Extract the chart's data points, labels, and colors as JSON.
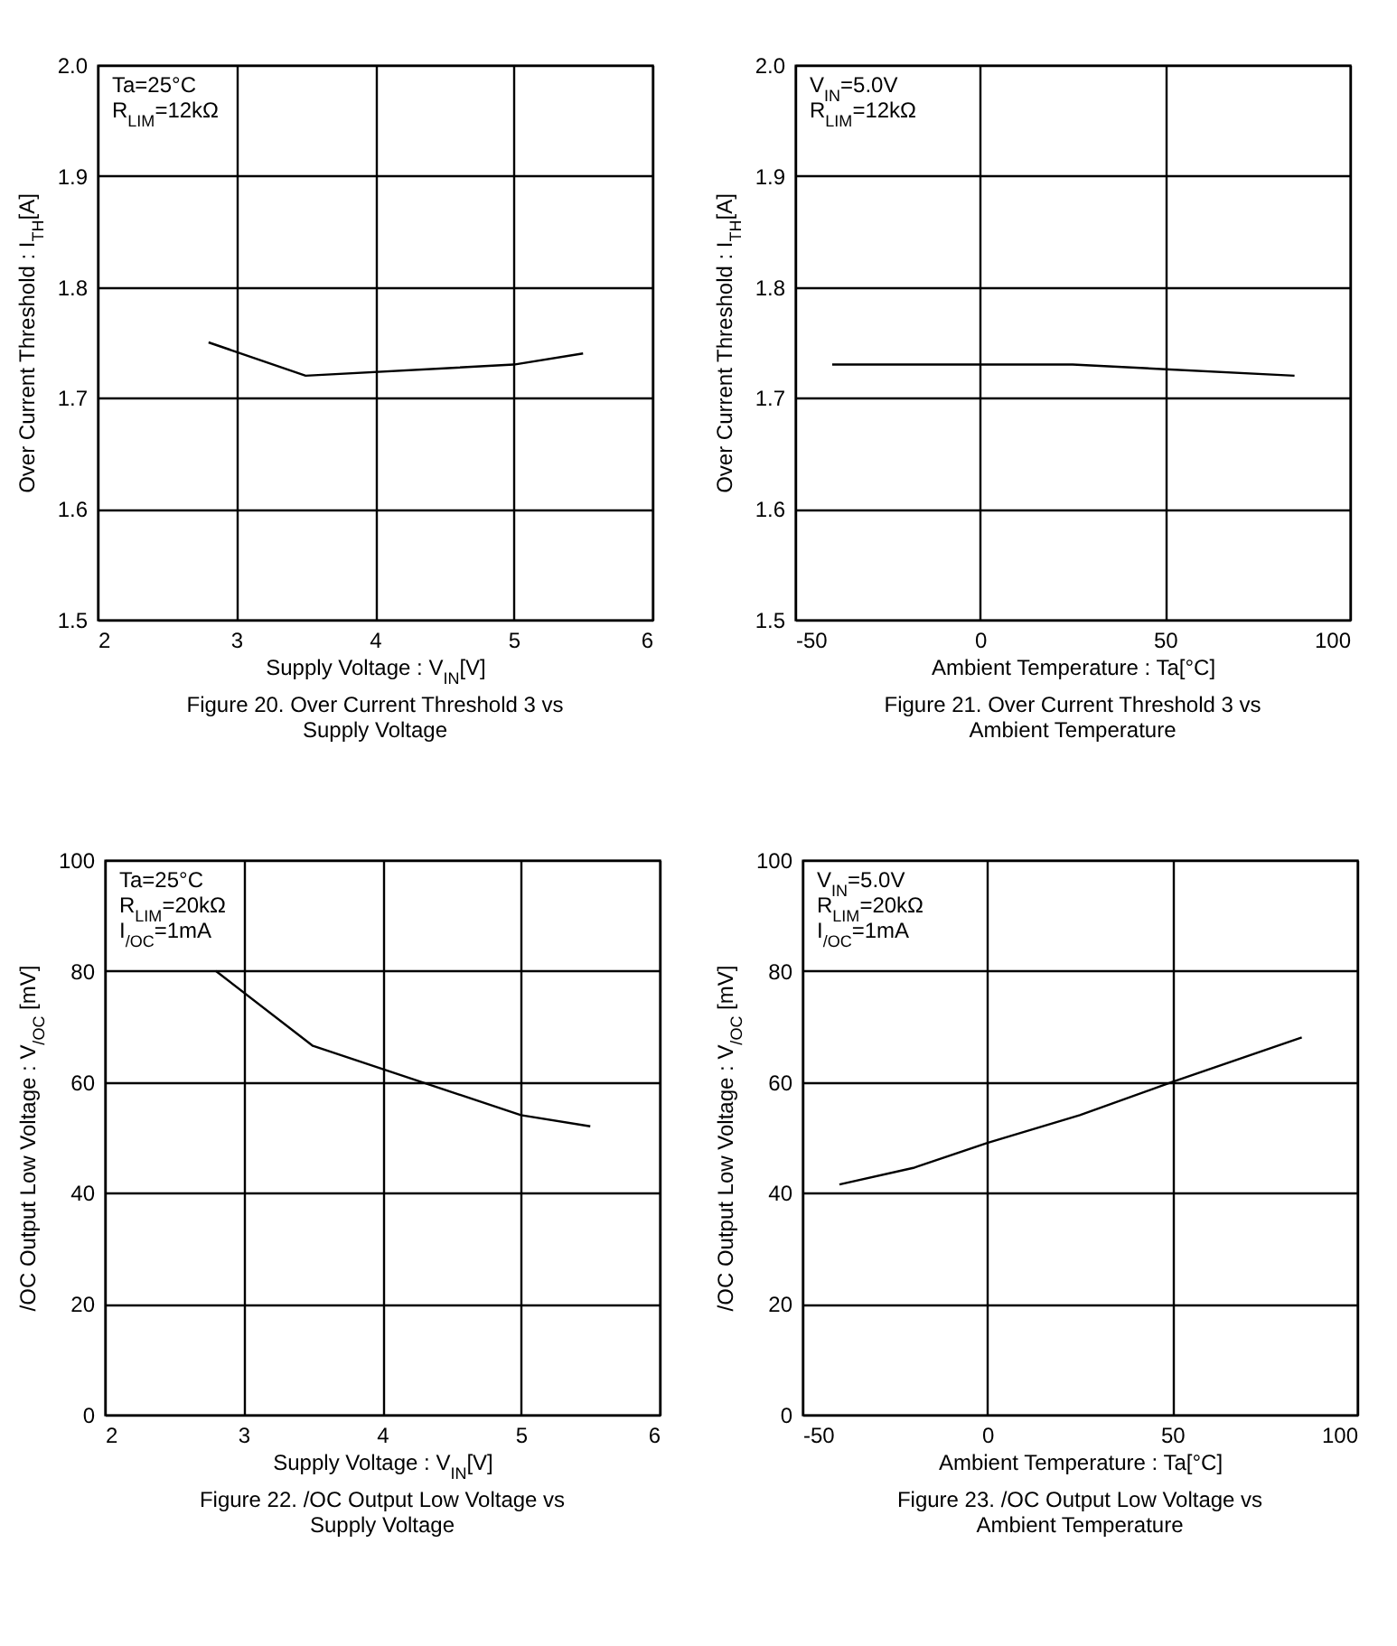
{
  "chart_data": [
    {
      "type": "line",
      "title": "Figure 20. Over Current Threshold 3 vs Supply Voltage",
      "xlabel": "Supply Voltage : V$_{IN}$[V]",
      "ylabel": "Over Current Threshold : I$_{TH}$[A]",
      "annotations": [
        "Ta=25°C",
        "R$_{LIM}$=12kΩ"
      ],
      "x": [
        2.8,
        3.5,
        5,
        5.5
      ],
      "series": [
        {
          "color": "#000000",
          "values": [
            1.75,
            1.72,
            1.73,
            1.74
          ]
        }
      ],
      "xlim": [
        2,
        6
      ],
      "xticks": [
        2,
        3,
        4,
        5,
        6
      ],
      "ylim": [
        1.5,
        2.0
      ],
      "yticks": [
        1.5,
        1.6,
        1.7,
        1.8,
        1.9,
        {
          "value": 2,
          "label": "2.0"
        }
      ],
      "grid": true
    },
    {
      "type": "line",
      "title": "Figure 21. Over Current Threshold 3 vs Ambient Temperature",
      "xlabel": "Ambient Temperature : Ta[°C]",
      "ylabel": "Over Current Threshold : I$_{TH}$[A]",
      "annotations": [
        "V$_{IN}$=5.0V",
        "R$_{LIM}$=12kΩ"
      ],
      "x": [
        -40,
        25,
        85
      ],
      "series": [
        {
          "color": "#000000",
          "values": [
            1.73,
            1.73,
            1.72
          ]
        }
      ],
      "xlim": [
        -50,
        100
      ],
      "xticks": [
        -50,
        0,
        50,
        100
      ],
      "ylim": [
        1.5,
        2.0
      ],
      "yticks": [
        1.5,
        1.6,
        1.7,
        1.8,
        1.9,
        {
          "value": 2,
          "label": "2.0"
        }
      ],
      "grid": true
    },
    {
      "type": "line",
      "title": "Figure 22. /OC Output Low Voltage vs Supply Voltage",
      "xlabel": "Supply Voltage : V$_{IN}$[V]",
      "ylabel": "/OC Output Low Voltage : V$_{/OC}$ [mV]",
      "annotations": [
        "Ta=25°C",
        "R$_{LIM}$=20kΩ",
        "I$_{/OC}$=1mA"
      ],
      "x": [
        2.8,
        3.5,
        5,
        5.5
      ],
      "series": [
        {
          "color": "#000000",
          "values": [
            80,
            66.5,
            54,
            52
          ]
        }
      ],
      "xlim": [
        2,
        6
      ],
      "xticks": [
        2,
        3,
        4,
        5,
        6
      ],
      "ylim": [
        0,
        100
      ],
      "yticks": [
        0,
        20,
        40,
        60,
        80,
        100
      ],
      "grid": true
    },
    {
      "type": "line",
      "title": "Figure 23. /OC Output Low Voltage vs Ambient Temperature",
      "xlabel": "Ambient Temperature : Ta[°C]",
      "ylabel": "/OC Output Low Voltage : V$_{/OC}$ [mV]",
      "annotations": [
        "V$_{IN}$=5.0V",
        "R$_{LIM}$=20kΩ",
        "I$_{/OC}$=1mA"
      ],
      "x": [
        -40,
        -20,
        0,
        25,
        50,
        85
      ],
      "series": [
        {
          "color": "#000000",
          "values": [
            41.5,
            44.5,
            49,
            54,
            60,
            68
          ]
        }
      ],
      "xlim": [
        -50,
        100
      ],
      "xticks": [
        -50,
        0,
        50,
        100
      ],
      "ylim": [
        0,
        100
      ],
      "yticks": [
        0,
        20,
        40,
        60,
        80,
        100
      ],
      "grid": true
    }
  ]
}
